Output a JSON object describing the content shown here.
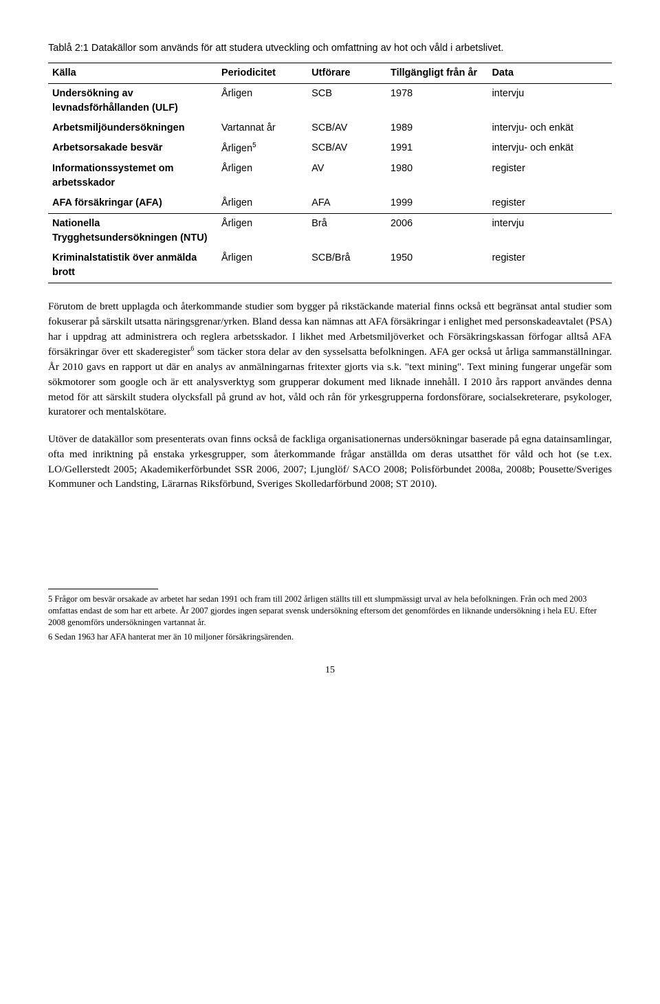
{
  "caption": "Tablå 2:1 Datakällor som används för att studera utveckling och omfattning av hot och våld i arbetslivet.",
  "table": {
    "headers": [
      "Källa",
      "Periodicitet",
      "Utförare",
      "Tillgängligt från år",
      "Data"
    ],
    "rows": [
      [
        "Undersökning av levnadsförhållanden (ULF)",
        "Årligen",
        "SCB",
        "1978",
        "intervju"
      ],
      [
        "Arbetsmiljöundersökningen",
        "Vartannat år",
        "SCB/AV",
        "1989",
        "intervju- och enkät"
      ],
      [
        "Arbetsorsakade besvär",
        "Årligen",
        "SCB/AV",
        "1991",
        "intervju- och enkät"
      ],
      [
        "Informationssystemet om arbetsskador",
        "Årligen",
        "AV",
        "1980",
        "register"
      ],
      [
        "AFA försäkringar (AFA)",
        "Årligen",
        "AFA",
        "1999",
        "register"
      ],
      [
        "Nationella Trygghetsundersökningen (NTU)",
        "Årligen",
        "Brå",
        "2006",
        "intervju"
      ],
      [
        "Kriminalstatistik över anmälda brott",
        "Årligen",
        "SCB/Brå",
        "1950",
        "register"
      ]
    ],
    "sup_row": 2,
    "sup_text": "5",
    "section_break_row": 5
  },
  "paragraphs": [
    "Förutom de brett upplagda och återkommande studier som bygger på rikstäckande material finns också ett begränsat antal studier som fokuserar på särskilt utsatta näringsgrenar/yrken. Bland dessa kan nämnas att AFA försäkringar i enlighet med personskadeavtalet (PSA) har i uppdrag att administrera och reglera arbetsskador. I likhet med Arbetsmiljöverket och Försäkringskassan förfogar alltså AFA försäkringar över ett skaderegister",
    " som täcker stora delar av den sysselsatta befolkningen. AFA ger också ut årliga sammanställningar. År 2010 gavs en rapport ut där en analys av anmälningarnas fritexter gjorts via s.k. \"text mining\". Text mining fungerar ungefär som sökmotorer som google och är ett analysverktyg som grupperar dokument med liknade innehåll. I 2010 års rapport användes denna metod för att särskilt studera olycksfall på grund av hot, våld och rån för yrkesgrupperna fordonsförare, socialsekreterare, psykologer, kuratorer och mentalskötare."
  ],
  "para1_sup": "6",
  "paragraph2": "Utöver de datakällor som presenterats ovan finns också de fackliga organisationernas undersökningar baserade på egna datainsamlingar, ofta med inriktning på enstaka yrkesgrupper, som återkommande frågar anställda om deras utsatthet för våld och hot (se t.ex. LO/Gellerstedt 2005; Akademikerförbundet SSR 2006, 2007; Ljunglöf/ SACO 2008; Polisförbundet 2008a, 2008b; Pousette/Sveriges Kommuner och Landsting, Lärarnas Riksförbund, Sveriges Skolledarförbund 2008; ST 2010).",
  "footnotes": [
    "5 Frågor om besvär orsakade av arbetet har sedan 1991 och fram till 2002 årligen ställts till ett slumpmässigt urval av hela befolkningen. Från och med 2003 omfattas endast de som har ett arbete. År 2007 gjordes ingen separat svensk undersökning eftersom det genomfördes en liknande undersökning i hela EU. Efter 2008 genomförs undersökningen vartannat år.",
    "6 Sedan 1963 har AFA hanterat mer än 10 miljoner försäkringsärenden."
  ],
  "page_number": "15"
}
